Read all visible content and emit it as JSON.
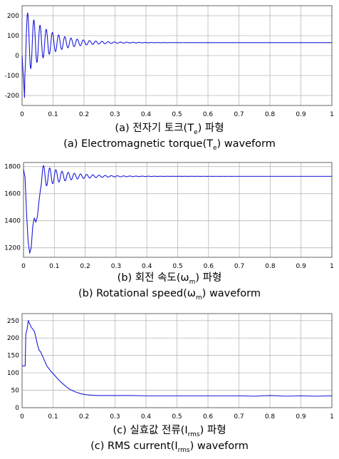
{
  "chart_data": [
    {
      "type": "line",
      "title": "",
      "xlabel": "",
      "ylabel": "",
      "xlim": [
        0,
        1
      ],
      "ylim": [
        -250,
        250
      ],
      "grid": true,
      "color": "#1a1ad8",
      "x_ticks": [
        0,
        0.1,
        0.2,
        0.3,
        0.4,
        0.5,
        0.6,
        0.7,
        0.8,
        0.9,
        1
      ],
      "x_tick_labels": [
        "0",
        "0.1",
        "0.2",
        "0.3",
        "0.4",
        "0.5",
        "0.6",
        "0.7",
        "0.8",
        "0.9",
        "1"
      ],
      "y_ticks": [
        -200,
        -100,
        0,
        100,
        200
      ],
      "y_tick_labels": [
        "-200",
        "-100",
        "0",
        "100",
        "200"
      ],
      "series": [
        {
          "model": "damped-oscillation",
          "start": [
            0,
            0
          ],
          "dip": [
            0.008,
            -210
          ],
          "steady_value": 65,
          "initial_amplitude": 170,
          "decay_time": 0.075,
          "frequency_hz": 50,
          "phase_start": 0.008
        }
      ],
      "caption_kr_before": "(a) 전자기 토크(T",
      "caption_kr_sub": "e",
      "caption_kr_after": ") 파형",
      "caption_en_before": "(a) Electromagnetic torque(T",
      "caption_en_sub": "e",
      "caption_en_after": ") waveform"
    },
    {
      "type": "line",
      "title": "",
      "xlabel": "",
      "ylabel": "",
      "xlim": [
        0,
        1
      ],
      "ylim": [
        1130,
        1830
      ],
      "grid": true,
      "color": "#1a1ad8",
      "x_ticks": [
        0,
        0.1,
        0.2,
        0.3,
        0.4,
        0.5,
        0.6,
        0.7,
        0.8,
        0.9,
        1
      ],
      "x_tick_labels": [
        "0",
        "0.1",
        "0.2",
        "0.3",
        "0.4",
        "0.5",
        "0.6",
        "0.7",
        "0.8",
        "0.9",
        "1"
      ],
      "y_ticks": [
        1200,
        1400,
        1600,
        1800
      ],
      "y_tick_labels": [
        "1200",
        "1400",
        "1600",
        "1800"
      ],
      "series": [
        {
          "points": [
            [
              0,
              1780
            ],
            [
              0.005,
              1720
            ],
            [
              0.01,
              1450
            ],
            [
              0.015,
              1250
            ],
            [
              0.02,
              1160
            ],
            [
              0.025,
              1200
            ],
            [
              0.03,
              1360
            ],
            [
              0.035,
              1420
            ],
            [
              0.04,
              1390
            ],
            [
              0.045,
              1430
            ],
            [
              0.05,
              1540
            ],
            [
              0.055,
              1630
            ]
          ],
          "tail_model": "damped-oscillation",
          "tail_start": 0.055,
          "steady_value": 1728,
          "initial_amplitude": 90,
          "decay_time": 0.08,
          "frequency_hz": 50
        }
      ],
      "caption_kr_before": "(b) 회전 속도(ω",
      "caption_kr_sub": "m",
      "caption_kr_after": ") 파형",
      "caption_en_before": "(b) Rotational speed(ω",
      "caption_en_sub": "m",
      "caption_en_after": ") waveform"
    },
    {
      "type": "line",
      "title": "",
      "xlabel": "",
      "ylabel": "",
      "xlim": [
        0,
        1
      ],
      "ylim": [
        0,
        270
      ],
      "grid": true,
      "color": "#1a1ad8",
      "x_ticks": [
        0,
        0.1,
        0.2,
        0.3,
        0.4,
        0.5,
        0.6,
        0.7,
        0.8,
        0.9,
        1
      ],
      "x_tick_labels": [
        "0",
        "0.1",
        "0.2",
        "0.3",
        "0.4",
        "0.5",
        "0.6",
        "0.7",
        "0.8",
        "0.9",
        "1"
      ],
      "y_ticks": [
        0,
        50,
        100,
        150,
        200,
        250
      ],
      "y_tick_labels": [
        "0",
        "50",
        "100",
        "150",
        "200",
        "250"
      ],
      "series": [
        {
          "points": [
            [
              0,
              120
            ],
            [
              0.01,
              120
            ],
            [
              0.012,
              210
            ],
            [
              0.016,
              225
            ],
            [
              0.02,
              250
            ],
            [
              0.025,
              240
            ],
            [
              0.03,
              230
            ],
            [
              0.035,
              225
            ],
            [
              0.04,
              218
            ],
            [
              0.045,
              200
            ],
            [
              0.05,
              180
            ],
            [
              0.055,
              165
            ],
            [
              0.06,
              160
            ],
            [
              0.07,
              140
            ],
            [
              0.08,
              120
            ],
            [
              0.09,
              108
            ],
            [
              0.1,
              98
            ],
            [
              0.11,
              88
            ],
            [
              0.12,
              78
            ],
            [
              0.13,
              70
            ],
            [
              0.14,
              62
            ],
            [
              0.15,
              55
            ],
            [
              0.16,
              50
            ],
            [
              0.17,
              46
            ],
            [
              0.18,
              43
            ],
            [
              0.19,
              40
            ],
            [
              0.2,
              38
            ],
            [
              0.22,
              36
            ],
            [
              0.25,
              35
            ],
            [
              0.3,
              35
            ],
            [
              0.35,
              35
            ],
            [
              0.4,
              34
            ],
            [
              0.45,
              34
            ],
            [
              0.5,
              34
            ],
            [
              0.55,
              34
            ],
            [
              0.6,
              34
            ],
            [
              0.65,
              34
            ],
            [
              0.7,
              34
            ],
            [
              0.75,
              33
            ],
            [
              0.8,
              35
            ],
            [
              0.85,
              33
            ],
            [
              0.9,
              34
            ],
            [
              0.95,
              33
            ],
            [
              1,
              34
            ]
          ]
        }
      ],
      "caption_kr_before": "(c) 실효값 전류(I",
      "caption_kr_sub": "rms",
      "caption_kr_after": ") 파형",
      "caption_en_before": "(c) RMS current(I",
      "caption_en_sub": "rms",
      "caption_en_after": ") waveform"
    }
  ]
}
